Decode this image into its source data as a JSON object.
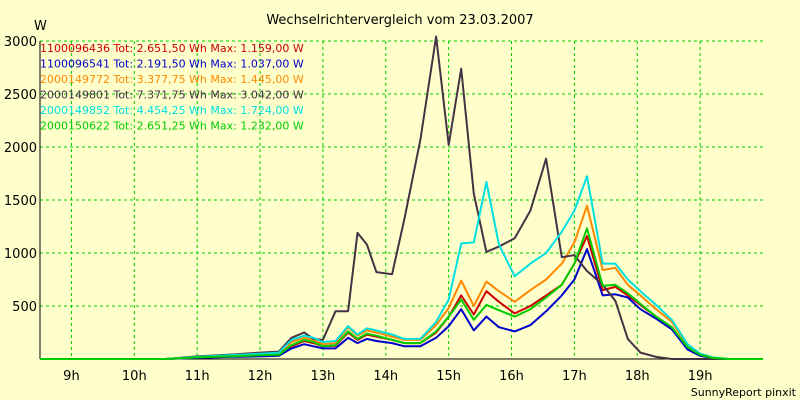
{
  "chart_data": {
    "type": "line",
    "title": "Wechselrichtervergleich vom 23.03.2007",
    "ylabel": "W",
    "xlabel": "",
    "ylim": [
      0,
      3000
    ],
    "xlim": [
      8.5,
      20.0
    ],
    "yticks": [
      {
        "value": 500,
        "label": "500"
      },
      {
        "value": 1000,
        "label": "1000"
      },
      {
        "value": 1500,
        "label": "1500"
      },
      {
        "value": 2000,
        "label": "2000"
      },
      {
        "value": 2500,
        "label": "2500"
      },
      {
        "value": 3000,
        "label": "3000"
      }
    ],
    "xticks": [
      {
        "value": 9,
        "label": "9h"
      },
      {
        "value": 10,
        "label": "10h"
      },
      {
        "value": 11,
        "label": "11h"
      },
      {
        "value": 12,
        "label": "12h"
      },
      {
        "value": 13,
        "label": "13h"
      },
      {
        "value": 14,
        "label": "14h"
      },
      {
        "value": 15,
        "label": "15h"
      },
      {
        "value": 16,
        "label": "16h"
      },
      {
        "value": 17,
        "label": "17h"
      },
      {
        "value": 18,
        "label": "18h"
      },
      {
        "value": 19,
        "label": "19h"
      }
    ],
    "grid": true,
    "legend_position": "top-left",
    "footer": "SunnyReport pinxit",
    "x": [
      8.5,
      10.5,
      11.0,
      11.5,
      12.0,
      12.3,
      12.5,
      12.7,
      12.85,
      13.0,
      13.2,
      13.4,
      13.55,
      13.7,
      13.85,
      14.1,
      14.3,
      14.55,
      14.8,
      15.0,
      15.2,
      15.4,
      15.6,
      15.8,
      16.05,
      16.3,
      16.55,
      16.8,
      17.0,
      17.2,
      17.45,
      17.65,
      17.85,
      18.05,
      18.3,
      18.55,
      18.8,
      19.0,
      19.2,
      19.45,
      19.65,
      20.0
    ],
    "series": [
      {
        "name": "1100096436 Tot: 2.651,50 Wh Max: 1.159,00 W",
        "color": "#cc0000",
        "values": [
          0,
          0,
          15,
          25,
          35,
          40,
          120,
          170,
          150,
          120,
          125,
          250,
          180,
          230,
          210,
          180,
          150,
          150,
          250,
          400,
          600,
          420,
          640,
          540,
          430,
          500,
          600,
          700,
          900,
          1159,
          650,
          680,
          600,
          510,
          400,
          300,
          100,
          40,
          10,
          0,
          0,
          0
        ]
      },
      {
        "name": "1100096541 Tot: 2.191,50 Wh Max: 1.037,00 W",
        "color": "#0000cc",
        "values": [
          0,
          0,
          10,
          20,
          25,
          30,
          100,
          140,
          120,
          100,
          100,
          200,
          150,
          190,
          170,
          150,
          120,
          120,
          200,
          310,
          470,
          270,
          400,
          300,
          260,
          320,
          450,
          600,
          750,
          1037,
          600,
          610,
          580,
          470,
          380,
          280,
          90,
          30,
          8,
          0,
          0,
          0
        ]
      },
      {
        "name": "2000149772 Tot: 3.377,75 Wh Max: 1.445,00 W",
        "color": "#ff8800",
        "values": [
          0,
          0,
          20,
          30,
          45,
          50,
          160,
          200,
          180,
          140,
          150,
          300,
          220,
          270,
          250,
          210,
          180,
          180,
          320,
          480,
          740,
          500,
          730,
          640,
          540,
          650,
          750,
          900,
          1100,
          1445,
          840,
          860,
          700,
          600,
          470,
          350,
          130,
          50,
          15,
          0,
          0,
          0
        ]
      },
      {
        "name": "2000149801 Tot: 7.371,75 Wh Max: 3.042,00 W",
        "color": "#443344",
        "values": [
          0,
          0,
          25,
          40,
          60,
          70,
          200,
          250,
          190,
          180,
          450,
          450,
          1190,
          1080,
          820,
          800,
          1330,
          2070,
          3042,
          2020,
          2740,
          1560,
          1010,
          1060,
          1140,
          1400,
          1890,
          960,
          980,
          830,
          700,
          550,
          190,
          60,
          20,
          0,
          0,
          0,
          0,
          0,
          0,
          0
        ]
      },
      {
        "name": "2000149852 Tot: 4.454,25 Wh Max: 1.724,00 W",
        "color": "#00e0e0",
        "values": [
          0,
          0,
          20,
          35,
          50,
          60,
          180,
          220,
          200,
          160,
          170,
          310,
          230,
          290,
          270,
          230,
          190,
          190,
          350,
          560,
          1090,
          1100,
          1670,
          1080,
          780,
          900,
          1000,
          1200,
          1400,
          1724,
          900,
          900,
          750,
          640,
          510,
          370,
          140,
          50,
          15,
          0,
          0,
          0
        ]
      },
      {
        "name": "2000150622 Tot: 2.651,25 Wh Max: 1.232,00 W",
        "color": "#00cc00",
        "values": [
          0,
          0,
          15,
          25,
          35,
          40,
          130,
          180,
          160,
          120,
          130,
          260,
          190,
          240,
          220,
          180,
          150,
          150,
          260,
          400,
          560,
          370,
          510,
          460,
          400,
          470,
          580,
          700,
          900,
          1232,
          690,
          700,
          620,
          520,
          400,
          300,
          110,
          40,
          10,
          0,
          0,
          0
        ]
      }
    ]
  }
}
